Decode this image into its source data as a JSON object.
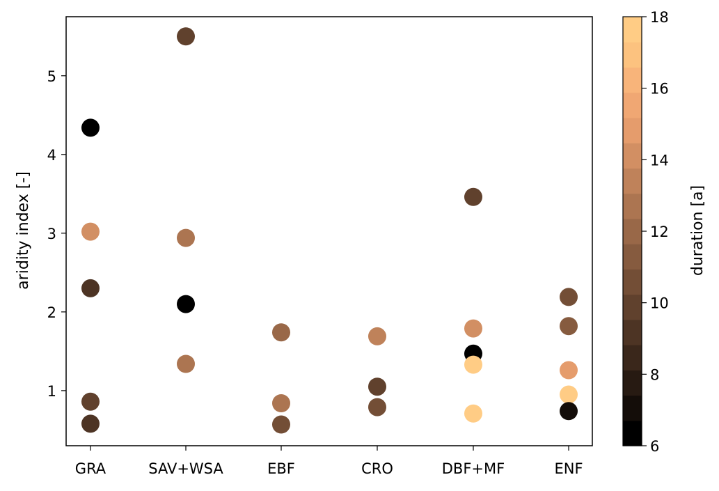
{
  "chart_data": {
    "type": "scatter",
    "title": "",
    "xlabel": "",
    "ylabel": "aridity index [-]",
    "categories": [
      "GRA",
      "SAV+WSA",
      "EBF",
      "CRO",
      "DBF+MF",
      "ENF"
    ],
    "yticks": [
      "1",
      "2",
      "3",
      "4",
      "5"
    ],
    "ylim": [
      0.3,
      5.75
    ],
    "grid": false,
    "colorbar": {
      "label": "duration [a]",
      "range": [
        6,
        18
      ],
      "ticks": [
        "6",
        "8",
        "10",
        "12",
        "14",
        "16",
        "18"
      ],
      "colors": [
        "#000000",
        "#140d09",
        "#271a12",
        "#3a271b",
        "#4d3424",
        "#60412d",
        "#734e36",
        "#865b3f",
        "#996848",
        "#ac7551",
        "#bf825a",
        "#d28f63",
        "#e59c6c",
        "#f0a773",
        "#f8b47a",
        "#fcc27f",
        "#ffcc85"
      ]
    },
    "points": [
      {
        "category": "GRA",
        "y": 4.34,
        "duration": 6.5
      },
      {
        "category": "GRA",
        "y": 3.02,
        "duration": 14
      },
      {
        "category": "GRA",
        "y": 2.3,
        "duration": 9.5
      },
      {
        "category": "GRA",
        "y": 0.86,
        "duration": 10
      },
      {
        "category": "GRA",
        "y": 0.58,
        "duration": 9.5
      },
      {
        "category": "SAV+WSA",
        "y": 5.5,
        "duration": 10
      },
      {
        "category": "SAV+WSA",
        "y": 2.94,
        "duration": 13
      },
      {
        "category": "SAV+WSA",
        "y": 2.1,
        "duration": 6.5
      },
      {
        "category": "SAV+WSA",
        "y": 1.34,
        "duration": 13
      },
      {
        "category": "EBF",
        "y": 1.74,
        "duration": 12
      },
      {
        "category": "EBF",
        "y": 0.84,
        "duration": 13
      },
      {
        "category": "EBF",
        "y": 0.57,
        "duration": 10.5
      },
      {
        "category": "CRO",
        "y": 1.69,
        "duration": 13.5
      },
      {
        "category": "CRO",
        "y": 1.05,
        "duration": 10
      },
      {
        "category": "CRO",
        "y": 0.79,
        "duration": 10.5
      },
      {
        "category": "DBF+MF",
        "y": 3.46,
        "duration": 10
      },
      {
        "category": "DBF+MF",
        "y": 1.79,
        "duration": 14
      },
      {
        "category": "DBF+MF",
        "y": 1.47,
        "duration": 6.5
      },
      {
        "category": "DBF+MF",
        "y": 1.33,
        "duration": 18
      },
      {
        "category": "DBF+MF",
        "y": 0.71,
        "duration": 18
      },
      {
        "category": "ENF",
        "y": 2.19,
        "duration": 10.5
      },
      {
        "category": "ENF",
        "y": 1.82,
        "duration": 11
      },
      {
        "category": "ENF",
        "y": 1.26,
        "duration": 15
      },
      {
        "category": "ENF",
        "y": 0.95,
        "duration": 18
      },
      {
        "category": "ENF",
        "y": 0.74,
        "duration": 7
      }
    ]
  }
}
